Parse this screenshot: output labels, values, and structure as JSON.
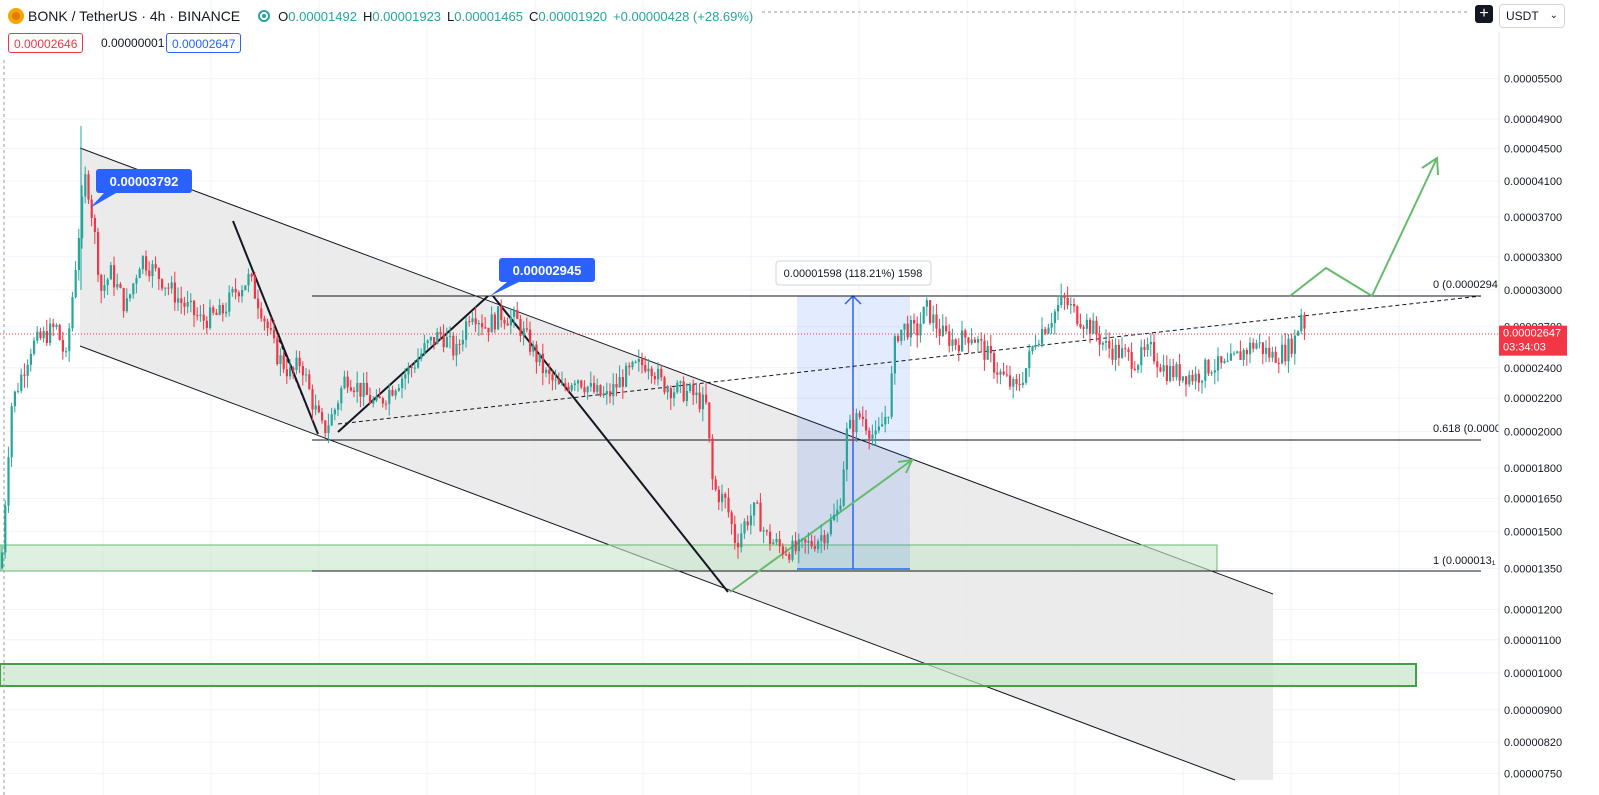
{
  "header": {
    "symbol": "BONK / TetherUS · 4h · BINANCE",
    "ohlc": {
      "o_label": "O",
      "o": "0.00001492",
      "h_label": "H",
      "h": "0.00001923",
      "l_label": "L",
      "l": "0.00001465",
      "c_label": "C",
      "c": "0.00001920",
      "change": "+0.00000428 (+28.69%)"
    },
    "bid": "0.00002646",
    "spread": "0.00000001",
    "ask": "0.00002647",
    "currency": "USDT",
    "icons": [
      "bonk-logo-icon",
      "eye-icon",
      "plus-icon",
      "chevron-down-icon"
    ]
  },
  "chart_data": {
    "type": "candlestick",
    "y_axis_ticks": [
      "0.00005500",
      "0.00004900",
      "0.00004500",
      "0.00004100",
      "0.00003700",
      "0.00003300",
      "0.00003000",
      "0.00002700",
      "0.00002400",
      "0.00002200",
      "0.00002000",
      "0.00001800",
      "0.00001650",
      "0.00001500",
      "0.00001350",
      "0.00001200",
      "0.00001100",
      "0.00001000",
      "0.00000900",
      "0.00000820",
      "0.00000750"
    ],
    "y_scale": "log",
    "ylim": [
      7.5e-06,
      5.6e-05
    ],
    "last_price": "0.00002647",
    "countdown": "03:34:03",
    "price_path": [
      [
        0,
        1.35e-05
      ],
      [
        10,
        2.15e-05
      ],
      [
        30,
        2.55e-05
      ],
      [
        55,
        2.7e-05
      ],
      [
        65,
        2.45e-05
      ],
      [
        72,
        3e-05
      ],
      [
        78,
        3.55e-05
      ],
      [
        85,
        4.2e-05
      ],
      [
        92,
        3.65e-05
      ],
      [
        100,
        3e-05
      ],
      [
        110,
        3.15e-05
      ],
      [
        125,
        2.85e-05
      ],
      [
        140,
        3.3e-05
      ],
      [
        160,
        3.1e-05
      ],
      [
        180,
        2.9e-05
      ],
      [
        200,
        2.75e-05
      ],
      [
        220,
        2.8e-05
      ],
      [
        235,
        3e-05
      ],
      [
        248,
        3.1e-05
      ],
      [
        260,
        2.85e-05
      ],
      [
        275,
        2.5e-05
      ],
      [
        290,
        2.35e-05
      ],
      [
        300,
        2.45e-05
      ],
      [
        310,
        2.2e-05
      ],
      [
        322,
        2e-05
      ],
      [
        332,
        2.1e-05
      ],
      [
        345,
        2.35e-05
      ],
      [
        360,
        2.25e-05
      ],
      [
        375,
        2.15e-05
      ],
      [
        395,
        2.3e-05
      ],
      [
        410,
        2.4e-05
      ],
      [
        425,
        2.55e-05
      ],
      [
        440,
        2.65e-05
      ],
      [
        455,
        2.5e-05
      ],
      [
        470,
        2.85e-05
      ],
      [
        485,
        2.7e-05
      ],
      [
        500,
        2.8e-05
      ],
      [
        515,
        2.75e-05
      ],
      [
        530,
        2.55e-05
      ],
      [
        545,
        2.35e-05
      ],
      [
        560,
        2.25e-05
      ],
      [
        575,
        2.35e-05
      ],
      [
        590,
        2.25e-05
      ],
      [
        605,
        2.2e-05
      ],
      [
        620,
        2.32e-05
      ],
      [
        635,
        2.4e-05
      ],
      [
        648,
        2.45e-05
      ],
      [
        660,
        2.3e-05
      ],
      [
        675,
        2.25e-05
      ],
      [
        690,
        2.23e-05
      ],
      [
        705,
        2.15e-05
      ],
      [
        712,
        1.7e-05
      ],
      [
        725,
        1.63e-05
      ],
      [
        735,
        1.45e-05
      ],
      [
        745,
        1.55e-05
      ],
      [
        755,
        1.6e-05
      ],
      [
        765,
        1.48e-05
      ],
      [
        780,
        1.43e-05
      ],
      [
        795,
        1.42e-05
      ],
      [
        810,
        1.45e-05
      ],
      [
        825,
        1.5e-05
      ],
      [
        838,
        1.6e-05
      ],
      [
        846,
        2e-05
      ],
      [
        860,
        2.1e-05
      ],
      [
        875,
        1.95e-05
      ],
      [
        888,
        2.15e-05
      ],
      [
        895,
        2.65e-05
      ],
      [
        905,
        2.7e-05
      ],
      [
        915,
        2.65e-05
      ],
      [
        925,
        2.85e-05
      ],
      [
        940,
        2.65e-05
      ],
      [
        955,
        2.58e-05
      ],
      [
        970,
        2.65e-05
      ],
      [
        985,
        2.5e-05
      ],
      [
        1000,
        2.35e-05
      ],
      [
        1015,
        2.25e-05
      ],
      [
        1025,
        2.4e-05
      ],
      [
        1035,
        2.62e-05
      ],
      [
        1048,
        2.75e-05
      ],
      [
        1062,
        2.92e-05
      ],
      [
        1075,
        2.8e-05
      ],
      [
        1090,
        2.7e-05
      ],
      [
        1105,
        2.55e-05
      ],
      [
        1120,
        2.5e-05
      ],
      [
        1135,
        2.45e-05
      ],
      [
        1150,
        2.52e-05
      ],
      [
        1165,
        2.38e-05
      ],
      [
        1180,
        2.36e-05
      ],
      [
        1195,
        2.34e-05
      ],
      [
        1210,
        2.42e-05
      ],
      [
        1225,
        2.4e-05
      ],
      [
        1240,
        2.5e-05
      ],
      [
        1255,
        2.58e-05
      ],
      [
        1270,
        2.48e-05
      ],
      [
        1285,
        2.52e-05
      ],
      [
        1295,
        2.62e-05
      ],
      [
        1300,
        2.82e-05
      ],
      [
        1306,
        2.65e-05
      ]
    ],
    "annotations": {
      "peak_label": "0.00003792",
      "second_peak_label": "0.00002945",
      "measure_label": "0.00001598 (118.21%) 1598",
      "fib_levels": [
        {
          "label": "0 (0.0000294",
          "value": 2.94e-05
        },
        {
          "label": "0.618 (0.0000",
          "value": 1.95e-05
        },
        {
          "label": "1 (0.000013₁",
          "value": 1.34e-05
        }
      ]
    },
    "colors": {
      "up": "#26a69a",
      "down": "#f23645",
      "accent": "#2962ff",
      "projection": "#66bb6a"
    }
  }
}
